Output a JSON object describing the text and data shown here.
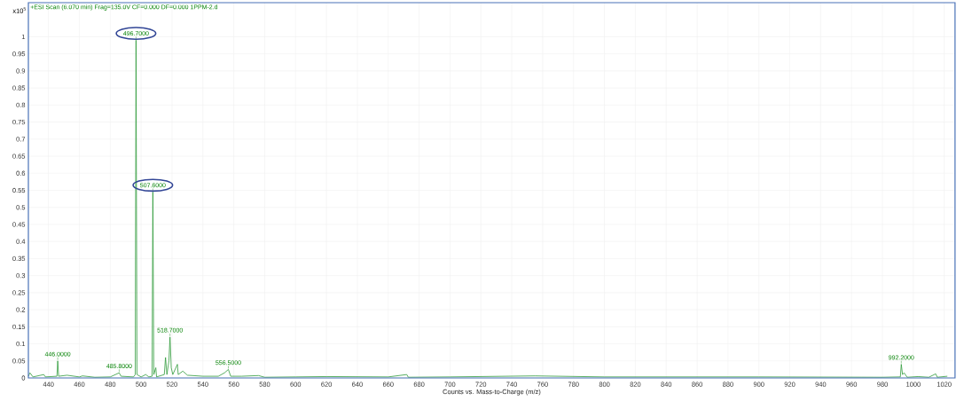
{
  "chart_data": {
    "type": "line",
    "title": "+ESI Scan (6.070 min) Frag=135.0V CF=0.000 DF=0.000 1PPM-2.d",
    "xlabel": "Counts vs. Mass-to-Charge (m/z)",
    "ylabel": "x10$^{5}$",
    "xlim": [
      427,
      1027
    ],
    "ylim": [
      0,
      1.1
    ],
    "xticks": [
      440,
      460,
      480,
      500,
      520,
      540,
      560,
      580,
      600,
      620,
      640,
      660,
      680,
      700,
      720,
      740,
      760,
      780,
      800,
      820,
      840,
      860,
      880,
      900,
      920,
      940,
      960,
      980,
      1000,
      1020
    ],
    "yticks": [
      0,
      0.05,
      0.1,
      0.15,
      0.2,
      0.25,
      0.3,
      0.35,
      0.4,
      0.45,
      0.5,
      0.55,
      0.6,
      0.65,
      0.7,
      0.75,
      0.8,
      0.85,
      0.9,
      0.95,
      1
    ],
    "grid": true,
    "marker": "none",
    "line_style": "solid",
    "series": [
      {
        "color": "#2e9a3a",
        "x": [
          427,
          428,
          430,
          437,
          438,
          445.5,
          446,
          446.6,
          452,
          460,
          462,
          470,
          480,
          485.8,
          487,
          495,
          496.2,
          496.7,
          497.3,
          500,
          503,
          505,
          507.1,
          507.6,
          508.2,
          509.5,
          510,
          515,
          515.8,
          516.7,
          518,
          518.7,
          519.5,
          520.5,
          523.5,
          524,
          527,
          530,
          540,
          550,
          554,
          556.5,
          558,
          565,
          576,
          580,
          600,
          620,
          660,
          672,
          673,
          700,
          755,
          800,
          900,
          980,
          991.6,
          992.2,
          993,
          994,
          996,
          1003,
          1010,
          1014.5,
          1015.5,
          1022
        ],
        "values": [
          0.005,
          0.015,
          0.003,
          0.01,
          0.003,
          0.005,
          0.05,
          0.005,
          0.008,
          0.003,
          0.006,
          0.002,
          0.003,
          0.015,
          0.005,
          0.003,
          0.01,
          0.99,
          0.01,
          0.003,
          0.01,
          0.003,
          0.005,
          0.545,
          0.01,
          0.03,
          0.003,
          0.01,
          0.06,
          0.01,
          0.05,
          0.12,
          0.03,
          0.01,
          0.04,
          0.01,
          0.02,
          0.008,
          0.005,
          0.005,
          0.015,
          0.025,
          0.005,
          0.005,
          0.007,
          0.002,
          0.003,
          0.004,
          0.003,
          0.01,
          0.002,
          0.003,
          0.006,
          0.003,
          0.003,
          0.002,
          0.003,
          0.04,
          0.01,
          0.015,
          0.002,
          0.004,
          0.002,
          0.012,
          0.002,
          0.005
        ]
      }
    ],
    "annotations": [
      {
        "text": "496.7000",
        "x": 496.7,
        "y": 0.99
      },
      {
        "text": "507.6000",
        "x": 507.6,
        "y": 0.545
      },
      {
        "text": "446.0000",
        "x": 446,
        "y": 0.05
      },
      {
        "text": "485.8000",
        "x": 485.8,
        "y": 0.015
      },
      {
        "text": "518.7000",
        "x": 518.7,
        "y": 0.12
      },
      {
        "text": "556.5000",
        "x": 556.5,
        "y": 0.025
      },
      {
        "text": "992.2000",
        "x": 992.2,
        "y": 0.04
      }
    ]
  }
}
